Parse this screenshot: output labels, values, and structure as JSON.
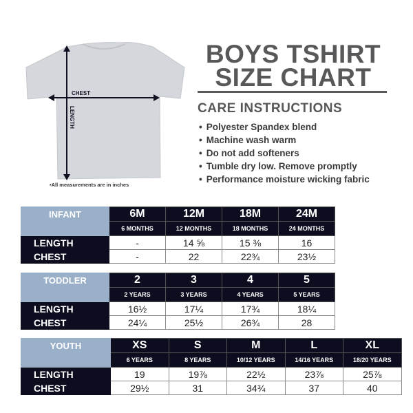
{
  "header": {
    "title_line1": "BOYS TSHIRT",
    "title_line2": "SIZE CHART"
  },
  "illustration": {
    "chest_label": "CHEST",
    "length_label": "LENGTH",
    "note": "•All measurements are in inches",
    "shirt_color": "#d4d7db",
    "arrow_color": "#111122"
  },
  "care": {
    "heading": "CARE INSTRUCTIONS",
    "items": [
      "Polyester Spandex blend",
      "Machine wash warm",
      "Do not add softeners",
      "Tumble dry low. Remove promptly",
      "Performance moisture wicking fabric"
    ]
  },
  "colors": {
    "category_bg": "#9ab0c8",
    "header_bg": "#0d0d20",
    "text_gray": "#58585a"
  },
  "tables": [
    {
      "category": "INFANT",
      "sizes": [
        "6M",
        "12M",
        "18M",
        "24M"
      ],
      "ages": [
        "6 MONTHS",
        "12 MONTHS",
        "18 MONTHS",
        "24 MONTHS"
      ],
      "rows": [
        {
          "label": "LENGTH",
          "values": [
            "-",
            "14 ⅝",
            "15 ⅜",
            "16"
          ]
        },
        {
          "label": "CHEST",
          "values": [
            "-",
            "22",
            "22¾",
            "23½"
          ]
        }
      ]
    },
    {
      "category": "TODDLER",
      "sizes": [
        "2",
        "3",
        "4",
        "5"
      ],
      "ages": [
        "2 YEARS",
        "3 YEARS",
        "4 YEARS",
        "5 YEARS"
      ],
      "rows": [
        {
          "label": "LENGTH",
          "values": [
            "16½",
            "17¼",
            "17¾",
            "18¼"
          ]
        },
        {
          "label": "CHEST",
          "values": [
            "24¼",
            "25½",
            "26¾",
            "28"
          ]
        }
      ]
    },
    {
      "category": "YOUTH",
      "sizes": [
        "XS",
        "S",
        "M",
        "L",
        "XL"
      ],
      "ages": [
        "6 YEARS",
        "8 YEARS",
        "10/12 YEARS",
        "14/16 YEARS",
        "18/20 YEARS"
      ],
      "rows": [
        {
          "label": "LENGTH",
          "values": [
            "19",
            "19⅞",
            "22½",
            "23⅞",
            "25⅞"
          ]
        },
        {
          "label": "CHEST",
          "values": [
            "29½",
            "31",
            "34¾",
            "37",
            "40"
          ]
        }
      ]
    }
  ]
}
